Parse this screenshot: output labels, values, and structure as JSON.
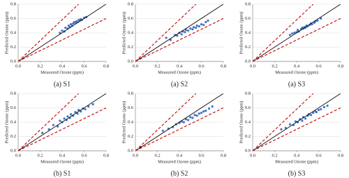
{
  "chart_data": [
    {
      "type": "scatter",
      "caption": "(a) S1",
      "xlabel": "Measured Ozone (ppm)",
      "ylabel": "Predicted Ozone (ppm)",
      "xlim": [
        0,
        0.8
      ],
      "ylim": [
        0,
        0.8
      ],
      "xticks": [
        {
          "value": 0,
          "label": "0.0"
        },
        0.2,
        0.4,
        0.6,
        0.8
      ],
      "yticks": [
        {
          "value": 0,
          "label": "0.0"
        },
        0.2,
        0.4,
        0.6,
        0.8
      ],
      "grid": true,
      "color": "#4472c4",
      "x": [
        0.38,
        0.4,
        0.42,
        0.43,
        0.45,
        0.46,
        0.47,
        0.48,
        0.49,
        0.5,
        0.51,
        0.52,
        0.53,
        0.54,
        0.55,
        0.56,
        0.57,
        0.58,
        0.6,
        0.62
      ],
      "values": [
        0.4,
        0.43,
        0.42,
        0.47,
        0.46,
        0.5,
        0.48,
        0.52,
        0.5,
        0.53,
        0.55,
        0.54,
        0.56,
        0.55,
        0.58,
        0.57,
        0.59,
        0.58,
        0.61,
        0.62
      ],
      "reference_lines": [
        {
          "color": "#000000",
          "style": "solid",
          "x": [
            0,
            0.8
          ],
          "values": [
            0,
            0.8
          ]
        },
        {
          "color": "#c00000",
          "style": "dashed",
          "x": [
            0,
            0.55
          ],
          "values": [
            0,
            0.8
          ]
        },
        {
          "color": "#c00000",
          "style": "dashed",
          "x": [
            0,
            0.8
          ],
          "values": [
            0,
            0.6
          ]
        }
      ]
    },
    {
      "type": "scatter",
      "caption": "(a) S2",
      "xlabel": "Measured Ozone (ppm)",
      "ylabel": "Predicted Ozone (ppm)",
      "xlim": [
        0,
        0.8
      ],
      "ylim": [
        0,
        0.8
      ],
      "xticks": [
        {
          "value": 0,
          "label": "0.0"
        },
        0.2,
        0.4,
        0.6,
        0.8
      ],
      "yticks": [
        {
          "value": 0,
          "label": "0.0"
        },
        0.2,
        0.4,
        0.6,
        0.8
      ],
      "grid": true,
      "color": "#4472c4",
      "x": [
        0.28,
        0.32,
        0.36,
        0.38,
        0.4,
        0.42,
        0.43,
        0.45,
        0.46,
        0.48,
        0.5,
        0.52,
        0.53,
        0.55,
        0.56,
        0.58,
        0.6,
        0.62,
        0.64,
        0.66
      ],
      "values": [
        0.33,
        0.3,
        0.37,
        0.36,
        0.4,
        0.38,
        0.42,
        0.41,
        0.44,
        0.43,
        0.46,
        0.45,
        0.48,
        0.47,
        0.5,
        0.49,
        0.52,
        0.51,
        0.55,
        0.57
      ],
      "reference_lines": [
        {
          "color": "#000000",
          "style": "solid",
          "x": [
            0,
            0.8
          ],
          "values": [
            0,
            0.8
          ]
        },
        {
          "color": "#c00000",
          "style": "dashed",
          "x": [
            0,
            0.55
          ],
          "values": [
            0,
            0.8
          ]
        },
        {
          "color": "#c00000",
          "style": "dashed",
          "x": [
            0,
            0.8
          ],
          "values": [
            0,
            0.6
          ]
        }
      ]
    },
    {
      "type": "scatter",
      "caption": "(a) S3",
      "xlabel": "Measured Ozone (ppm)",
      "ylabel": "Predicted Ozone (ppm)",
      "xlim": [
        0,
        0.8
      ],
      "ylim": [
        0,
        0.8
      ],
      "xticks": [
        {
          "value": 0,
          "label": "0.0"
        },
        0.2,
        0.4,
        0.6,
        0.8
      ],
      "yticks": [
        {
          "value": 0,
          "label": "0.0"
        },
        0.2,
        0.4,
        0.6,
        0.8
      ],
      "grid": true,
      "color": "#4472c4",
      "x": [
        0.34,
        0.36,
        0.38,
        0.4,
        0.41,
        0.42,
        0.44,
        0.45,
        0.46,
        0.47,
        0.48,
        0.49,
        0.5,
        0.52,
        0.53,
        0.54,
        0.56,
        0.57,
        0.59,
        0.62
      ],
      "values": [
        0.37,
        0.39,
        0.4,
        0.41,
        0.44,
        0.42,
        0.45,
        0.47,
        0.46,
        0.48,
        0.47,
        0.5,
        0.49,
        0.51,
        0.53,
        0.52,
        0.54,
        0.56,
        0.57,
        0.6
      ],
      "reference_lines": [
        {
          "color": "#000000",
          "style": "solid",
          "x": [
            0,
            0.8
          ],
          "values": [
            0,
            0.8
          ]
        },
        {
          "color": "#c00000",
          "style": "dashed",
          "x": [
            0,
            0.55
          ],
          "values": [
            0,
            0.8
          ]
        },
        {
          "color": "#c00000",
          "style": "dashed",
          "x": [
            0,
            0.8
          ],
          "values": [
            0,
            0.6
          ]
        }
      ]
    },
    {
      "type": "scatter",
      "caption": "(b) S1",
      "xlabel": "Measured Ozone (ppm)",
      "ylabel": "Predicted Ozone (ppm)",
      "xlim": [
        0,
        0.8
      ],
      "ylim": [
        0,
        0.8
      ],
      "xticks": [
        {
          "value": 0,
          "label": "0.0"
        },
        0.2,
        0.4,
        0.6,
        0.8
      ],
      "yticks": [
        {
          "value": 0,
          "label": "0.0"
        },
        0.2,
        0.4,
        0.6,
        0.8
      ],
      "grid": true,
      "color": "#4472c4",
      "x": [
        0.22,
        0.28,
        0.32,
        0.36,
        0.38,
        0.4,
        0.42,
        0.44,
        0.45,
        0.47,
        0.48,
        0.5,
        0.52,
        0.54,
        0.55,
        0.57,
        0.59,
        0.61,
        0.64,
        0.68
      ],
      "values": [
        0.25,
        0.3,
        0.36,
        0.34,
        0.42,
        0.4,
        0.45,
        0.43,
        0.48,
        0.46,
        0.51,
        0.49,
        0.54,
        0.52,
        0.57,
        0.55,
        0.59,
        0.58,
        0.62,
        0.65
      ],
      "reference_lines": [
        {
          "color": "#000000",
          "style": "solid",
          "x": [
            0,
            0.8
          ],
          "values": [
            0,
            0.8
          ]
        },
        {
          "color": "#c00000",
          "style": "dashed",
          "x": [
            0,
            0.55
          ],
          "values": [
            0,
            0.8
          ]
        },
        {
          "color": "#c00000",
          "style": "dashed",
          "x": [
            0,
            0.8
          ],
          "values": [
            0,
            0.6
          ]
        }
      ]
    },
    {
      "type": "scatter",
      "caption": "(b) S2",
      "xlabel": "Measured Ozone (ppm)",
      "ylabel": "Predicted Ozone (ppm)",
      "xlim": [
        0,
        0.8
      ],
      "ylim": [
        0,
        0.8
      ],
      "xticks": [
        {
          "value": 0,
          "label": "0.0"
        },
        0.2,
        0.4,
        0.6,
        0.8
      ],
      "yticks": [
        {
          "value": 0,
          "label": "0.0"
        },
        0.2,
        0.4,
        0.6,
        0.8
      ],
      "grid": true,
      "color": "#4472c4",
      "x": [
        0.05,
        0.25,
        0.3,
        0.34,
        0.37,
        0.4,
        0.42,
        0.44,
        0.46,
        0.48,
        0.5,
        0.52,
        0.54,
        0.56,
        0.58,
        0.6,
        0.62,
        0.64,
        0.67,
        0.7
      ],
      "values": [
        0.05,
        0.28,
        0.31,
        0.33,
        0.37,
        0.39,
        0.41,
        0.4,
        0.44,
        0.43,
        0.47,
        0.46,
        0.5,
        0.49,
        0.52,
        0.53,
        0.55,
        0.56,
        0.59,
        0.62
      ],
      "reference_lines": [
        {
          "color": "#000000",
          "style": "solid",
          "x": [
            0,
            0.8
          ],
          "values": [
            0,
            0.8
          ]
        },
        {
          "color": "#c00000",
          "style": "dashed",
          "x": [
            0,
            0.55
          ],
          "values": [
            0,
            0.8
          ]
        },
        {
          "color": "#c00000",
          "style": "dashed",
          "x": [
            0,
            0.8
          ],
          "values": [
            0,
            0.6
          ]
        }
      ]
    },
    {
      "type": "scatter",
      "caption": "(b) S3",
      "xlabel": "Measured Ozone (ppm)",
      "ylabel": "Predicted Ozone (ppm)",
      "xlim": [
        0,
        0.8
      ],
      "ylim": [
        0,
        0.8
      ],
      "xticks": [
        {
          "value": 0,
          "label": "0.0"
        },
        0.2,
        0.4,
        0.6,
        0.8
      ],
      "yticks": [
        {
          "value": 0,
          "label": "0.0"
        },
        0.2,
        0.4,
        0.6,
        0.8
      ],
      "grid": true,
      "color": "#4472c4",
      "x": [
        0.26,
        0.3,
        0.34,
        0.37,
        0.39,
        0.41,
        0.43,
        0.45,
        0.46,
        0.48,
        0.5,
        0.51,
        0.53,
        0.55,
        0.57,
        0.58,
        0.6,
        0.62,
        0.65,
        0.68
      ],
      "values": [
        0.3,
        0.32,
        0.37,
        0.36,
        0.41,
        0.4,
        0.44,
        0.42,
        0.47,
        0.45,
        0.49,
        0.51,
        0.5,
        0.53,
        0.55,
        0.54,
        0.57,
        0.58,
        0.61,
        0.63
      ],
      "reference_lines": [
        {
          "color": "#000000",
          "style": "solid",
          "x": [
            0,
            0.8
          ],
          "values": [
            0,
            0.8
          ]
        },
        {
          "color": "#c00000",
          "style": "dashed",
          "x": [
            0,
            0.55
          ],
          "values": [
            0,
            0.8
          ]
        },
        {
          "color": "#c00000",
          "style": "dashed",
          "x": [
            0,
            0.8
          ],
          "values": [
            0,
            0.6
          ]
        }
      ]
    }
  ]
}
